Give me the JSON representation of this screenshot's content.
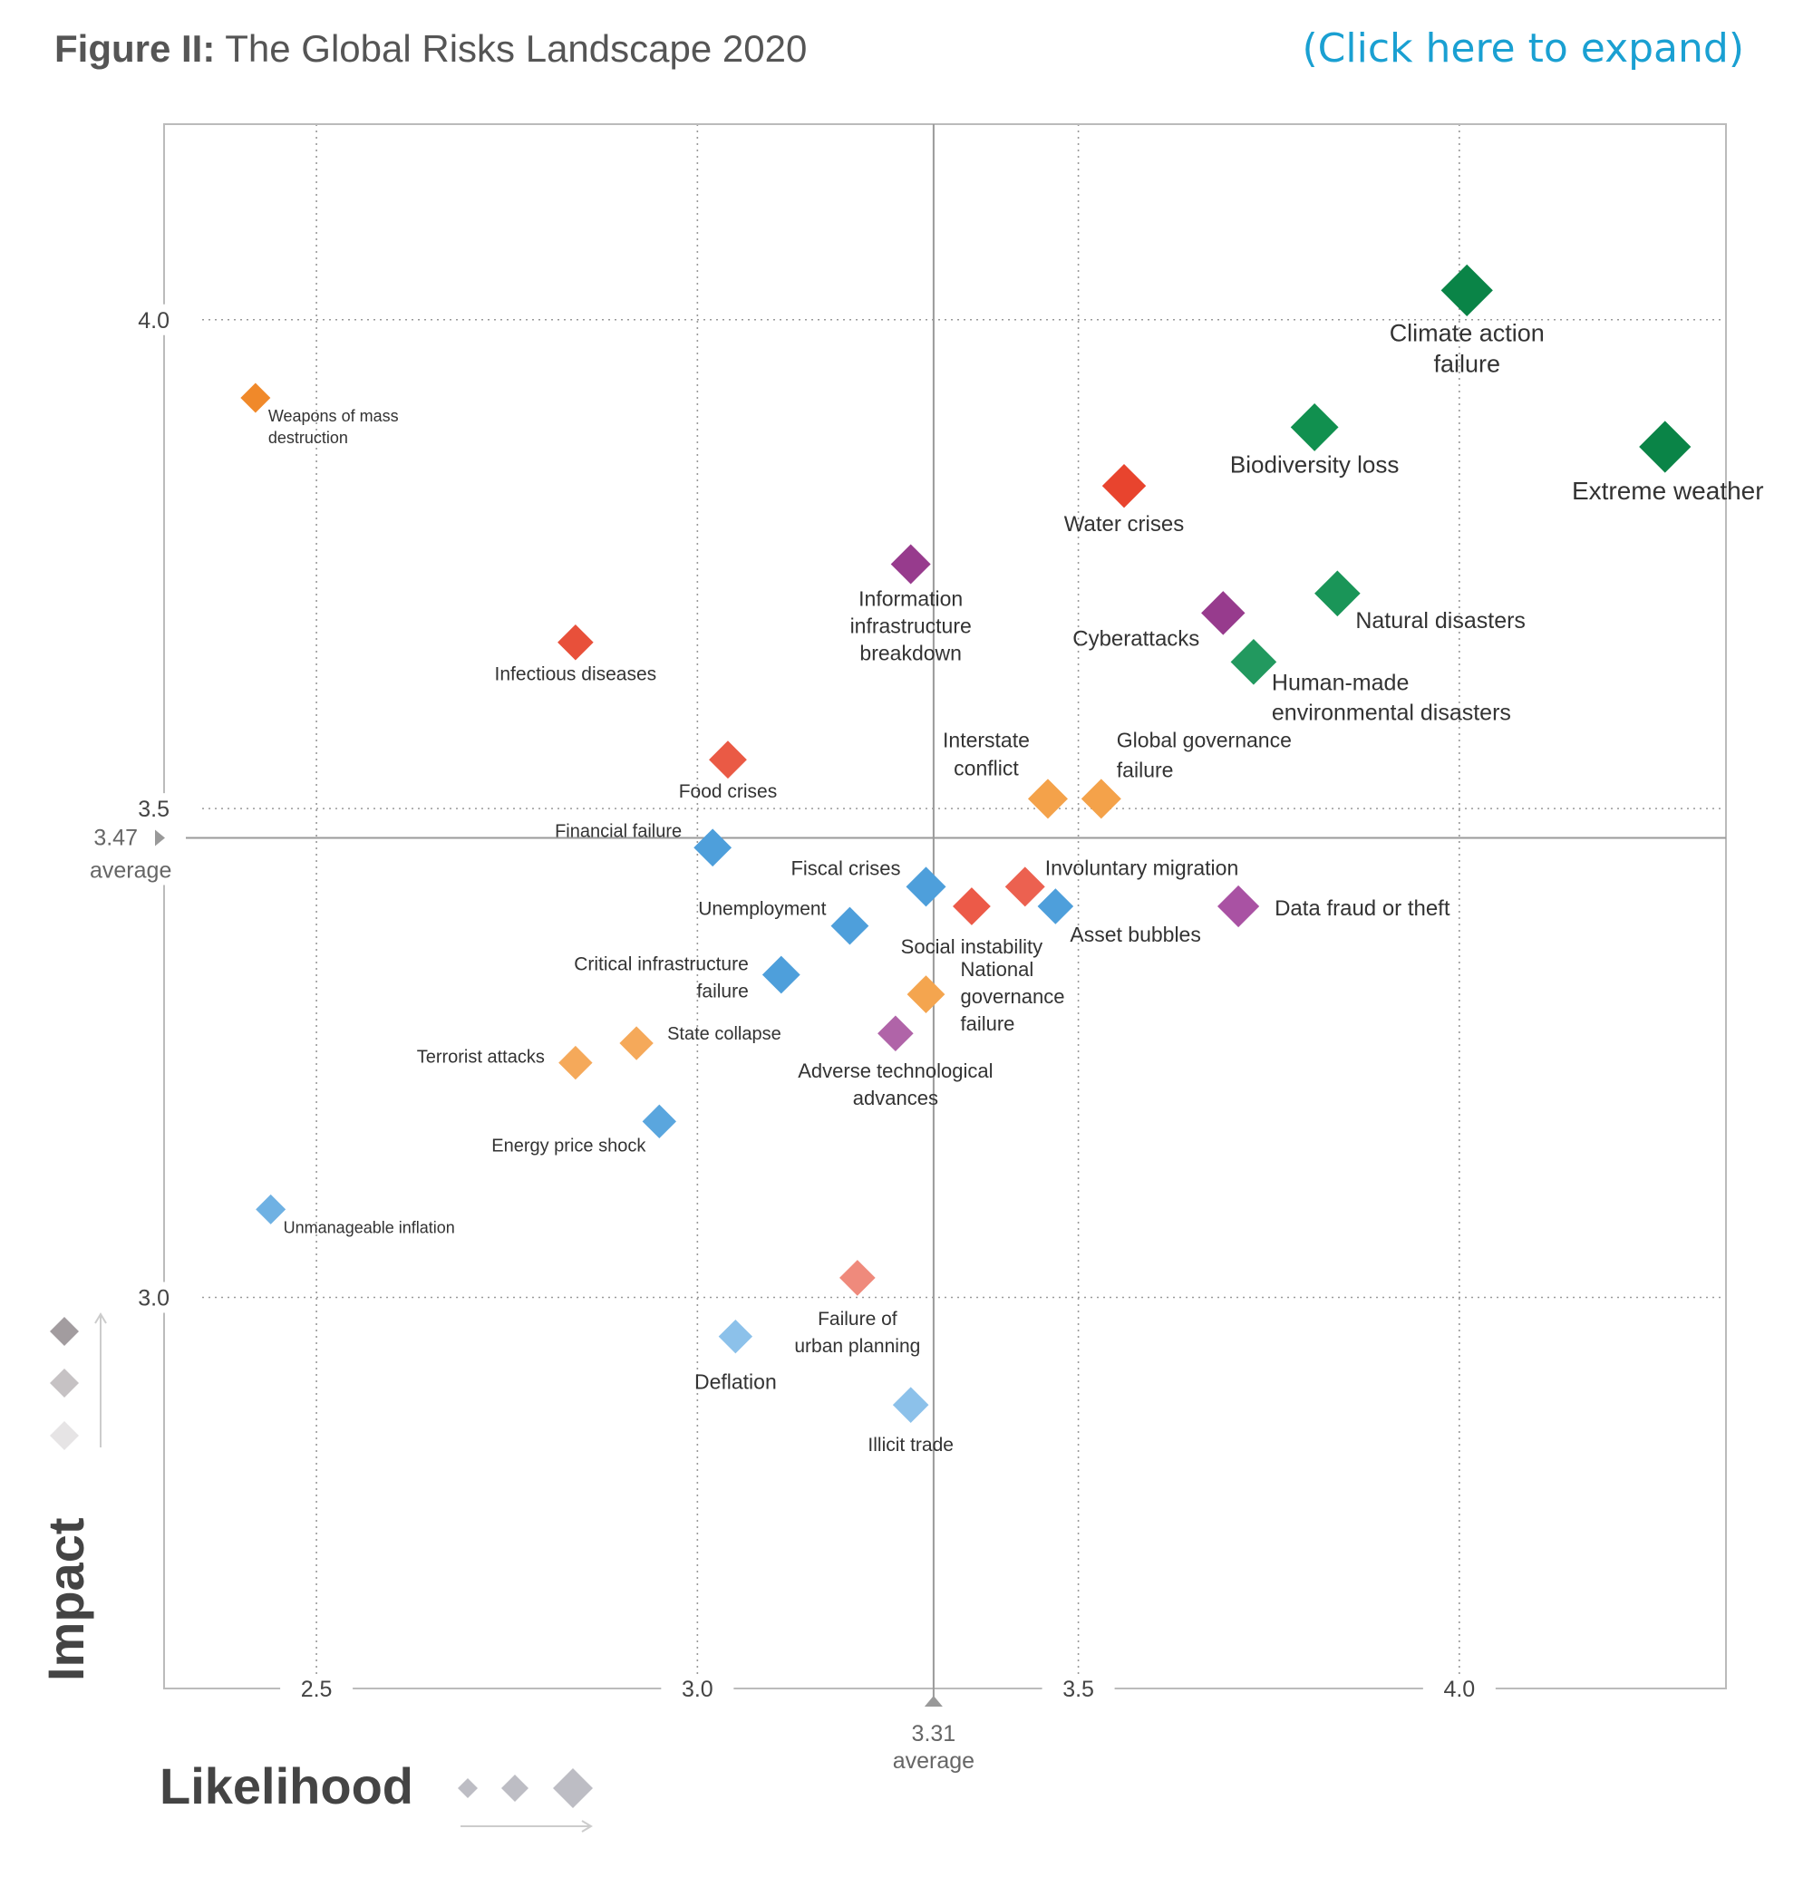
{
  "header": {
    "figure_prefix": "Figure II:",
    "title": "The Global Risks Landscape 2020",
    "expand_link": "(Click here to expand)"
  },
  "chart_data": {
    "type": "scatter",
    "xlabel": "Likelihood",
    "ylabel": "Impact",
    "xlim": [
      2.3,
      4.35
    ],
    "ylim": [
      2.6,
      4.2
    ],
    "x_ticks": [
      2.5,
      3.0,
      3.5,
      4.0
    ],
    "y_ticks": [
      3.0,
      3.5,
      4.0
    ],
    "grid": true,
    "averages": {
      "x": {
        "value": 3.31,
        "value_label": "3.31",
        "label": "average"
      },
      "y": {
        "value": 3.47,
        "value_label": "3.47",
        "label": "average"
      }
    },
    "category_colors": {
      "economic": "#4e9fdb",
      "environmental": "#0e8c4c",
      "geopolitical": "#f29d3e",
      "societal": "#e8503a",
      "technological": "#9b3c8f"
    },
    "points": [
      {
        "label": "Climate action failure",
        "lines": [
          "Climate action",
          "failure"
        ],
        "x": 4.01,
        "y": 4.03,
        "category": "environmental",
        "color": "#0a8447",
        "size": 2.6
      },
      {
        "label": "Extreme weather",
        "lines": [
          "Extreme weather"
        ],
        "x": 4.27,
        "y": 3.87,
        "category": "environmental",
        "color": "#0a8447",
        "size": 2.6
      },
      {
        "label": "Biodiversity loss",
        "lines": [
          "Biodiversity loss"
        ],
        "x": 3.81,
        "y": 3.89,
        "category": "environmental",
        "color": "#11904f",
        "size": 2.4
      },
      {
        "label": "Natural disasters",
        "lines": [
          "Natural disasters"
        ],
        "x": 3.84,
        "y": 3.72,
        "category": "environmental",
        "color": "#1a9558",
        "size": 2.3
      },
      {
        "label": "Human-made environmental disasters",
        "lines": [
          "Human-made",
          "environmental disasters"
        ],
        "x": 3.73,
        "y": 3.65,
        "category": "environmental",
        "color": "#22995f",
        "size": 2.3
      },
      {
        "label": "Water crises",
        "lines": [
          "Water crises"
        ],
        "x": 3.56,
        "y": 3.83,
        "category": "societal",
        "color": "#e8442e",
        "size": 2.2
      },
      {
        "label": "Cyberattacks",
        "lines": [
          "Cyberattacks"
        ],
        "x": 3.69,
        "y": 3.7,
        "category": "technological",
        "color": "#973b8d",
        "size": 2.2
      },
      {
        "label": "Information infrastructure breakdown",
        "lines": [
          "Information",
          "infrastructure",
          "breakdown"
        ],
        "x": 3.28,
        "y": 3.75,
        "category": "technological",
        "color": "#973b8d",
        "size": 2.0
      },
      {
        "label": "Infectious diseases",
        "lines": [
          "Infectious diseases"
        ],
        "x": 2.84,
        "y": 3.67,
        "category": "societal",
        "color": "#e8503a",
        "size": 1.8
      },
      {
        "label": "Weapons of mass destruction",
        "lines": [
          "Weapons of mass",
          "destruction"
        ],
        "x": 2.42,
        "y": 3.92,
        "category": "geopolitical",
        "color": "#f0892a",
        "size": 1.5
      },
      {
        "label": "Food crises",
        "lines": [
          "Food crises"
        ],
        "x": 3.04,
        "y": 3.55,
        "category": "societal",
        "color": "#ea5a45",
        "size": 1.9
      },
      {
        "label": "Interstate conflict",
        "lines": [
          "Interstate",
          "conflict"
        ],
        "x": 3.46,
        "y": 3.51,
        "category": "geopolitical",
        "color": "#f4a24a",
        "size": 2.0
      },
      {
        "label": "Global governance failure",
        "lines": [
          "Global governance",
          "failure"
        ],
        "x": 3.53,
        "y": 3.51,
        "category": "geopolitical",
        "color": "#f4a24a",
        "size": 2.0
      },
      {
        "label": "Financial failure",
        "lines": [
          "Financial failure"
        ],
        "x": 3.02,
        "y": 3.46,
        "category": "economic",
        "color": "#4e9fdb",
        "size": 1.9
      },
      {
        "label": "Fiscal crises",
        "lines": [
          "Fiscal crises"
        ],
        "x": 3.3,
        "y": 3.42,
        "category": "economic",
        "color": "#4e9fdb",
        "size": 2.0
      },
      {
        "label": "Involuntary migration",
        "lines": [
          "Involuntary migration"
        ],
        "x": 3.43,
        "y": 3.42,
        "category": "societal",
        "color": "#ec6150",
        "size": 2.0
      },
      {
        "label": "Asset bubbles",
        "lines": [
          "Asset bubbles"
        ],
        "x": 3.47,
        "y": 3.4,
        "category": "economic",
        "color": "#4e9fdb",
        "size": 1.8
      },
      {
        "label": "Social instability",
        "lines": [
          "Social instability"
        ],
        "x": 3.36,
        "y": 3.4,
        "category": "societal",
        "color": "#ec5a48",
        "size": 1.9
      },
      {
        "label": "Data fraud or theft",
        "lines": [
          "Data fraud or theft"
        ],
        "x": 3.71,
        "y": 3.4,
        "category": "technological",
        "color": "#a952a3",
        "size": 2.1
      },
      {
        "label": "Unemployment",
        "lines": [
          "Unemployment"
        ],
        "x": 3.2,
        "y": 3.38,
        "category": "economic",
        "color": "#4e9fdb",
        "size": 1.9
      },
      {
        "label": "Critical infrastructure failure",
        "lines": [
          "Critical infrastructure",
          "failure"
        ],
        "x": 3.11,
        "y": 3.33,
        "category": "economic",
        "color": "#4e9fdb",
        "size": 1.9
      },
      {
        "label": "National governance failure",
        "lines": [
          "National",
          "governance",
          "failure"
        ],
        "x": 3.3,
        "y": 3.31,
        "category": "geopolitical",
        "color": "#f4a54f",
        "size": 1.9
      },
      {
        "label": "Adverse technological advances",
        "lines": [
          "Adverse technological",
          "advances"
        ],
        "x": 3.26,
        "y": 3.27,
        "category": "technological",
        "color": "#b064a8",
        "size": 1.8
      },
      {
        "label": "State collapse",
        "lines": [
          "State collapse"
        ],
        "x": 2.92,
        "y": 3.26,
        "category": "geopolitical",
        "color": "#f5a95a",
        "size": 1.7
      },
      {
        "label": "Terrorist attacks",
        "lines": [
          "Terrorist attacks"
        ],
        "x": 2.84,
        "y": 3.24,
        "category": "geopolitical",
        "color": "#f5a95a",
        "size": 1.7
      },
      {
        "label": "Energy price shock",
        "lines": [
          "Energy price shock"
        ],
        "x": 2.95,
        "y": 3.18,
        "category": "economic",
        "color": "#5aa6de",
        "size": 1.7
      },
      {
        "label": "Unmanageable inflation",
        "lines": [
          "Unmanageable inflation"
        ],
        "x": 2.44,
        "y": 3.09,
        "category": "economic",
        "color": "#6fb1e3",
        "size": 1.5
      },
      {
        "label": "Failure of urban planning",
        "lines": [
          "Failure of",
          "urban planning"
        ],
        "x": 3.21,
        "y": 3.02,
        "category": "societal",
        "color": "#ef8a7c",
        "size": 1.8
      },
      {
        "label": "Deflation",
        "lines": [
          "Deflation"
        ],
        "x": 3.05,
        "y": 2.96,
        "category": "economic",
        "color": "#8cc1ea",
        "size": 1.7
      },
      {
        "label": "Illicit trade",
        "lines": [
          "Illicit trade"
        ],
        "x": 3.28,
        "y": 2.89,
        "category": "economic",
        "color": "#8cc1ea",
        "size": 1.8
      }
    ]
  }
}
